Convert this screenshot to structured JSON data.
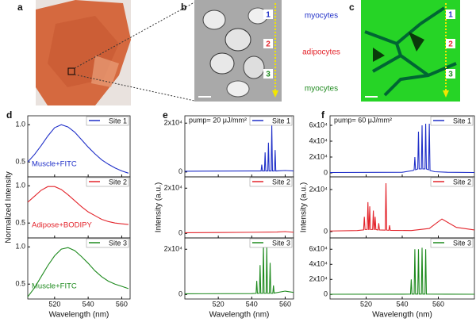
{
  "panel_labels": [
    "a",
    "b",
    "c",
    "d",
    "e",
    "f"
  ],
  "cell_labels": [
    {
      "text": "myocytes",
      "color": "#1f2fc8"
    },
    {
      "text": "adipocytes",
      "color": "#e3242b"
    },
    {
      "text": "myocytes",
      "color": "#1e8a1e"
    }
  ],
  "site_markers": [
    {
      "text": "1",
      "color": "#1f2fc8"
    },
    {
      "text": "2",
      "color": "#e3242b"
    },
    {
      "text": "3",
      "color": "#1e8a1e"
    }
  ],
  "chart_data": [
    {
      "type": "line",
      "annotation": "Muscle+FITC",
      "annotation_loc": "lower left",
      "legend_loc": "upper right",
      "x": [
        504,
        508,
        512,
        516,
        520,
        524,
        528,
        532,
        536,
        540,
        544,
        548,
        552,
        556,
        560,
        564
      ],
      "series": [
        {
          "name": "Site 1",
          "color": "#1f2fc8",
          "values": [
            0.5,
            0.6,
            0.72,
            0.85,
            0.96,
            1.0,
            0.97,
            0.9,
            0.8,
            0.7,
            0.61,
            0.53,
            0.47,
            0.42,
            0.38,
            0.35
          ]
        }
      ],
      "xlim": [
        504,
        565
      ],
      "xticks": [
        520,
        540,
        560
      ],
      "ylim": [
        0.3,
        1.12
      ],
      "yticks": [
        0.5,
        {
          "value": 1,
          "label": "1.0"
        }
      ]
    },
    {
      "type": "line",
      "annotation": "Adipose+BODIPY",
      "annotation_loc": "lower left",
      "legend_loc": "upper right",
      "ylabel": "Normalized Intensity",
      "x": [
        504,
        508,
        512,
        516,
        520,
        524,
        528,
        532,
        536,
        540,
        544,
        548,
        552,
        556,
        560,
        564
      ],
      "series": [
        {
          "name": "Site 2",
          "color": "#e3242b",
          "values": [
            0.78,
            0.86,
            0.94,
            0.99,
            0.99,
            0.95,
            0.88,
            0.8,
            0.72,
            0.65,
            0.6,
            0.55,
            0.52,
            0.5,
            0.49,
            0.48
          ]
        }
      ],
      "xlim": [
        504,
        565
      ],
      "xticks": [
        520,
        540,
        560
      ],
      "ylim": [
        0.3,
        1.12
      ],
      "yticks": [
        0.5,
        {
          "value": 1,
          "label": "1.0"
        }
      ]
    },
    {
      "type": "line",
      "annotation": "Muscle+FITC",
      "annotation_loc": "lower left",
      "legend_loc": "upper right",
      "xlabel": "Wavelength (nm)",
      "x": [
        504,
        508,
        512,
        516,
        520,
        524,
        528,
        532,
        536,
        540,
        544,
        548,
        552,
        556,
        560,
        564
      ],
      "series": [
        {
          "name": "Site 3",
          "color": "#1e8a1e",
          "values": [
            0.33,
            0.45,
            0.6,
            0.75,
            0.88,
            0.97,
            0.99,
            0.95,
            0.87,
            0.78,
            0.68,
            0.6,
            0.54,
            0.5,
            0.47,
            0.44
          ]
        }
      ],
      "xlim": [
        504,
        565
      ],
      "xticks": [
        520,
        540,
        560
      ],
      "ylim": [
        0.3,
        1.12
      ],
      "yticks": [
        0.5,
        {
          "value": 1,
          "label": "1.0"
        }
      ]
    },
    {
      "type": "line",
      "annotation": "pump= 20 μJ/mm²",
      "annotation_loc": "upper left",
      "legend_loc": "upper right",
      "x": [
        500,
        540,
        545.6,
        546,
        546.4,
        547.6,
        548,
        548.4,
        549.6,
        550,
        550.4,
        551.6,
        552,
        552.4,
        553.6,
        554,
        554.4,
        560,
        565
      ],
      "series": [
        {
          "name": "Site 1",
          "color": "#1f2fc8",
          "values": [
            300,
            400,
            400,
            3000,
            400,
            400,
            8000,
            400,
            400,
            12000,
            400,
            400,
            19000,
            400,
            400,
            9000,
            400,
            600,
            400
          ]
        }
      ],
      "xlim": [
        500,
        565
      ],
      "xticks": [
        520,
        540,
        560
      ],
      "ylim": [
        -2000,
        23000
      ],
      "yticks": [
        0,
        {
          "value": 20000,
          "label": "2x10⁴"
        }
      ]
    },
    {
      "type": "line",
      "legend_loc": "upper right",
      "ylabel": "Intensity (a.u.)",
      "x": [
        500,
        520,
        540,
        555,
        560,
        565
      ],
      "series": [
        {
          "name": "Site 2",
          "color": "#e3242b",
          "values": [
            300,
            400,
            500,
            600,
            800,
            500
          ]
        }
      ],
      "xlim": [
        500,
        565
      ],
      "xticks": [
        520,
        540,
        560
      ],
      "ylim": [
        -2000,
        25000
      ],
      "yticks": [
        0,
        {
          "value": 20000,
          "label": "2x10⁴"
        }
      ]
    },
    {
      "type": "line",
      "legend_loc": "upper right",
      "xlabel": "Wavelength (nm)",
      "x": [
        500,
        540,
        542.6,
        543,
        543.4,
        544.6,
        545,
        545.4,
        546.6,
        547,
        547.4,
        548.6,
        549,
        549.4,
        550.6,
        551,
        551.4,
        552.6,
        553,
        553.4,
        560,
        565
      ],
      "series": [
        {
          "name": "Site 3",
          "color": "#1e8a1e",
          "values": [
            300,
            400,
            500,
            6000,
            500,
            500,
            13000,
            500,
            500,
            22000,
            500,
            500,
            21000,
            500,
            500,
            14000,
            500,
            500,
            4000,
            600,
            1500,
            900
          ]
        }
      ],
      "xlim": [
        500,
        565
      ],
      "xticks": [
        520,
        540,
        560
      ],
      "ylim": [
        -2000,
        25000
      ],
      "yticks": [
        0,
        {
          "value": 20000,
          "label": "2x10⁴"
        }
      ]
    },
    {
      "type": "line",
      "annotation": "pump= 60 μJ/mm²",
      "annotation_loc": "upper left",
      "legend_loc": "upper right",
      "x": [
        500,
        540,
        546,
        546.6,
        547,
        547.4,
        548.6,
        549,
        549.4,
        550.6,
        551,
        551.4,
        552.6,
        553,
        553.4,
        554.6,
        555,
        555.4,
        558,
        565,
        580
      ],
      "series": [
        {
          "name": "Site 1",
          "color": "#1f2fc8",
          "values": [
            500,
            800,
            3000,
            4000,
            20000,
            4000,
            5000,
            52000,
            5000,
            5000,
            60000,
            5000,
            5000,
            62000,
            5000,
            4000,
            62000,
            3000,
            1500,
            800,
            500
          ]
        }
      ],
      "xlim": [
        500,
        580
      ],
      "xticks": [
        520,
        540,
        560
      ],
      "ylim": [
        -5000,
        72000
      ],
      "yticks": [
        0,
        {
          "value": 20000,
          "label": "2x10⁴"
        },
        {
          "value": 40000,
          "label": "4x10⁴"
        },
        {
          "value": 60000,
          "label": "6x10⁴"
        }
      ]
    },
    {
      "type": "line",
      "legend_loc": "upper right",
      "ylabel": "Intensity (a.u.)",
      "x": [
        500,
        515,
        518.6,
        519,
        519.4,
        520.6,
        521,
        521.4,
        521.6,
        522,
        522.4,
        523.6,
        524,
        524.4,
        524.6,
        525,
        525.4,
        526.6,
        527,
        527.4,
        530.6,
        531,
        531.4,
        532.6,
        533,
        533.4,
        545,
        555,
        562,
        570,
        580
      ],
      "series": [
        {
          "name": "Site 2",
          "color": "#e3242b",
          "values": [
            300,
            500,
            800,
            7000,
            1000,
            1000,
            14000,
            1000,
            1000,
            12000,
            1000,
            1000,
            10000,
            1000,
            1000,
            7000,
            1000,
            800,
            4000,
            800,
            700,
            23000,
            700,
            600,
            3000,
            600,
            500,
            1500,
            6000,
            2000,
            800
          ]
        }
      ],
      "xlim": [
        500,
        580
      ],
      "xticks": [
        520,
        540,
        560
      ],
      "ylim": [
        -3000,
        26000
      ],
      "yticks": [
        0,
        {
          "value": 20000,
          "label": "2x10⁴"
        }
      ]
    },
    {
      "type": "line",
      "legend_loc": "upper right",
      "xlabel": "Wavelength (nm)",
      "x": [
        500,
        540,
        544.6,
        545,
        545.4,
        546.6,
        547,
        547.4,
        548.6,
        549,
        549.4,
        550.6,
        551,
        551.4,
        552.6,
        553,
        553.4,
        565,
        580
      ],
      "series": [
        {
          "name": "Site 3",
          "color": "#1e8a1e",
          "values": [
            300,
            400,
            500,
            20000,
            500,
            500,
            60000,
            500,
            500,
            60000,
            500,
            500,
            62000,
            500,
            500,
            60000,
            500,
            400,
            300
          ]
        }
      ],
      "xlim": [
        500,
        580
      ],
      "xticks": [
        520,
        540,
        560
      ],
      "ylim": [
        -6000,
        75000
      ],
      "yticks": [
        0,
        {
          "value": 20000,
          "label": "2x10⁴"
        },
        {
          "value": 40000,
          "label": "4x10⁴"
        },
        {
          "value": 60000,
          "label": "6x10⁴"
        }
      ]
    }
  ]
}
